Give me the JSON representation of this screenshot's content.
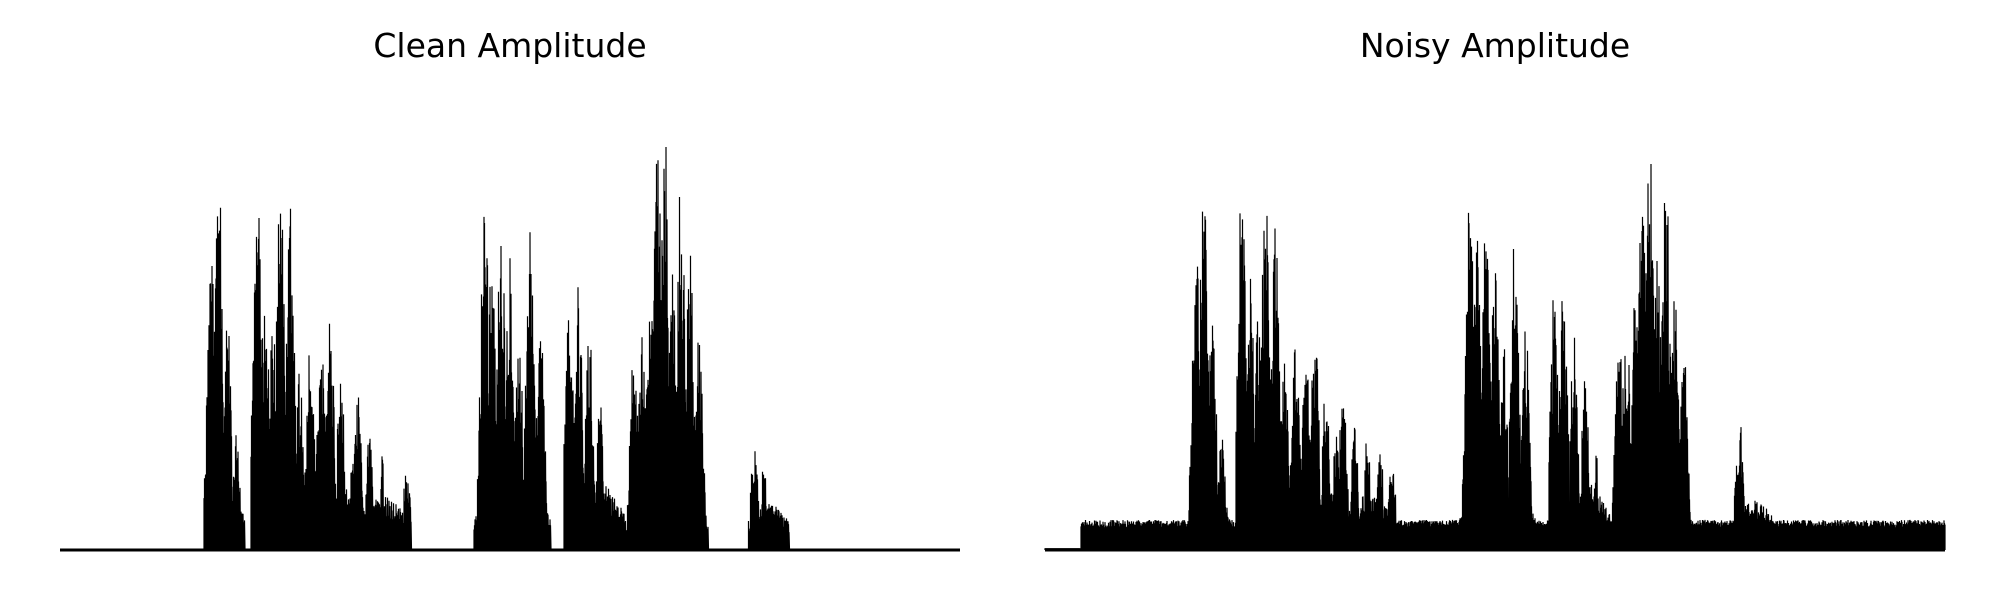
{
  "chart_data": [
    {
      "type": "area",
      "title": "Clean Amplitude",
      "xlabel": "",
      "ylabel": "",
      "ylim": [
        0,
        1.0
      ],
      "axes_visible": false,
      "grid": false,
      "color": "#000000",
      "noise_floor": 0.0,
      "noise_range": [
        0,
        1
      ],
      "bursts": [
        {
          "start": 0.16,
          "end": 0.205,
          "peaks": [
            [
              0.168,
              0.7
            ],
            [
              0.176,
              0.95
            ],
            [
              0.186,
              0.55
            ],
            [
              0.196,
              0.3
            ]
          ]
        },
        {
          "start": 0.212,
          "end": 0.275,
          "peaks": [
            [
              0.219,
              0.88
            ],
            [
              0.228,
              0.62
            ],
            [
              0.237,
              0.55
            ],
            [
              0.245,
              0.88
            ],
            [
              0.256,
              0.8
            ],
            [
              0.266,
              0.42
            ]
          ]
        },
        {
          "start": 0.27,
          "end": 0.34,
          "peaks": [
            [
              0.278,
              0.48
            ],
            [
              0.29,
              0.5
            ],
            [
              0.3,
              0.56
            ],
            [
              0.312,
              0.4
            ],
            [
              0.324,
              0.22
            ]
          ]
        },
        {
          "start": 0.325,
          "end": 0.39,
          "peaks": [
            [
              0.331,
              0.36
            ],
            [
              0.344,
              0.28
            ],
            [
              0.358,
              0.22
            ],
            [
              0.372,
              0.16
            ],
            [
              0.385,
              0.2
            ]
          ]
        },
        {
          "start": 0.46,
          "end": 0.545,
          "peaks": [
            [
              0.472,
              0.86
            ],
            [
              0.48,
              0.7
            ],
            [
              0.49,
              0.82
            ],
            [
              0.5,
              0.74
            ],
            [
              0.51,
              0.5
            ],
            [
              0.522,
              0.78
            ],
            [
              0.534,
              0.52
            ]
          ]
        },
        {
          "start": 0.56,
          "end": 0.63,
          "peaks": [
            [
              0.566,
              0.6
            ],
            [
              0.576,
              0.62
            ],
            [
              0.588,
              0.52
            ],
            [
              0.6,
              0.38
            ],
            [
              0.612,
              0.22
            ],
            [
              0.624,
              0.08
            ]
          ]
        },
        {
          "start": 0.63,
          "end": 0.72,
          "peaks": [
            [
              0.638,
              0.5
            ],
            [
              0.646,
              0.56
            ],
            [
              0.656,
              0.62
            ],
            [
              0.664,
              0.96
            ],
            [
              0.672,
              0.98
            ],
            [
              0.68,
              0.68
            ],
            [
              0.69,
              0.9
            ],
            [
              0.7,
              0.72
            ],
            [
              0.71,
              0.5
            ]
          ]
        },
        {
          "start": 0.765,
          "end": 0.81,
          "peaks": [
            [
              0.772,
              0.25
            ],
            [
              0.782,
              0.2
            ],
            [
              0.792,
              0.08
            ],
            [
              0.802,
              0.04
            ]
          ]
        }
      ]
    },
    {
      "type": "area",
      "title": "Noisy Amplitude",
      "xlabel": "",
      "ylabel": "",
      "ylim": [
        0,
        1.0
      ],
      "axes_visible": false,
      "grid": false,
      "color": "#000000",
      "noise_floor": 0.07,
      "noise_range": [
        0.04,
        1
      ],
      "bursts": [
        {
          "start": 0.16,
          "end": 0.205,
          "peaks": [
            [
              0.168,
              0.7
            ],
            [
              0.176,
              0.92
            ],
            [
              0.186,
              0.55
            ],
            [
              0.196,
              0.3
            ]
          ]
        },
        {
          "start": 0.212,
          "end": 0.275,
          "peaks": [
            [
              0.219,
              0.9
            ],
            [
              0.228,
              0.64
            ],
            [
              0.237,
              0.55
            ],
            [
              0.245,
              0.86
            ],
            [
              0.256,
              0.8
            ],
            [
              0.266,
              0.44
            ]
          ]
        },
        {
          "start": 0.27,
          "end": 0.34,
          "peaks": [
            [
              0.278,
              0.5
            ],
            [
              0.29,
              0.46
            ],
            [
              0.3,
              0.52
            ],
            [
              0.312,
              0.38
            ],
            [
              0.324,
              0.28
            ]
          ]
        },
        {
          "start": 0.325,
          "end": 0.39,
          "peaks": [
            [
              0.331,
              0.38
            ],
            [
              0.344,
              0.3
            ],
            [
              0.358,
              0.26
            ],
            [
              0.372,
              0.24
            ],
            [
              0.385,
              0.22
            ]
          ]
        },
        {
          "start": 0.46,
          "end": 0.545,
          "peaks": [
            [
              0.472,
              0.84
            ],
            [
              0.48,
              0.74
            ],
            [
              0.49,
              0.78
            ],
            [
              0.5,
              0.7
            ],
            [
              0.51,
              0.48
            ],
            [
              0.522,
              0.78
            ],
            [
              0.534,
              0.52
            ]
          ]
        },
        {
          "start": 0.56,
          "end": 0.63,
          "peaks": [
            [
              0.566,
              0.62
            ],
            [
              0.576,
              0.64
            ],
            [
              0.588,
              0.5
            ],
            [
              0.6,
              0.4
            ],
            [
              0.612,
              0.24
            ],
            [
              0.624,
              0.14
            ]
          ]
        },
        {
          "start": 0.63,
          "end": 0.72,
          "peaks": [
            [
              0.638,
              0.52
            ],
            [
              0.646,
              0.54
            ],
            [
              0.656,
              0.6
            ],
            [
              0.664,
              0.94
            ],
            [
              0.672,
              0.98
            ],
            [
              0.68,
              0.72
            ],
            [
              0.69,
              0.88
            ],
            [
              0.7,
              0.6
            ],
            [
              0.71,
              0.46
            ]
          ]
        },
        {
          "start": 0.765,
          "end": 0.81,
          "peaks": [
            [
              0.772,
              0.3
            ],
            [
              0.782,
              0.16
            ],
            [
              0.792,
              0.1
            ],
            [
              0.802,
              0.08
            ]
          ]
        }
      ]
    }
  ]
}
